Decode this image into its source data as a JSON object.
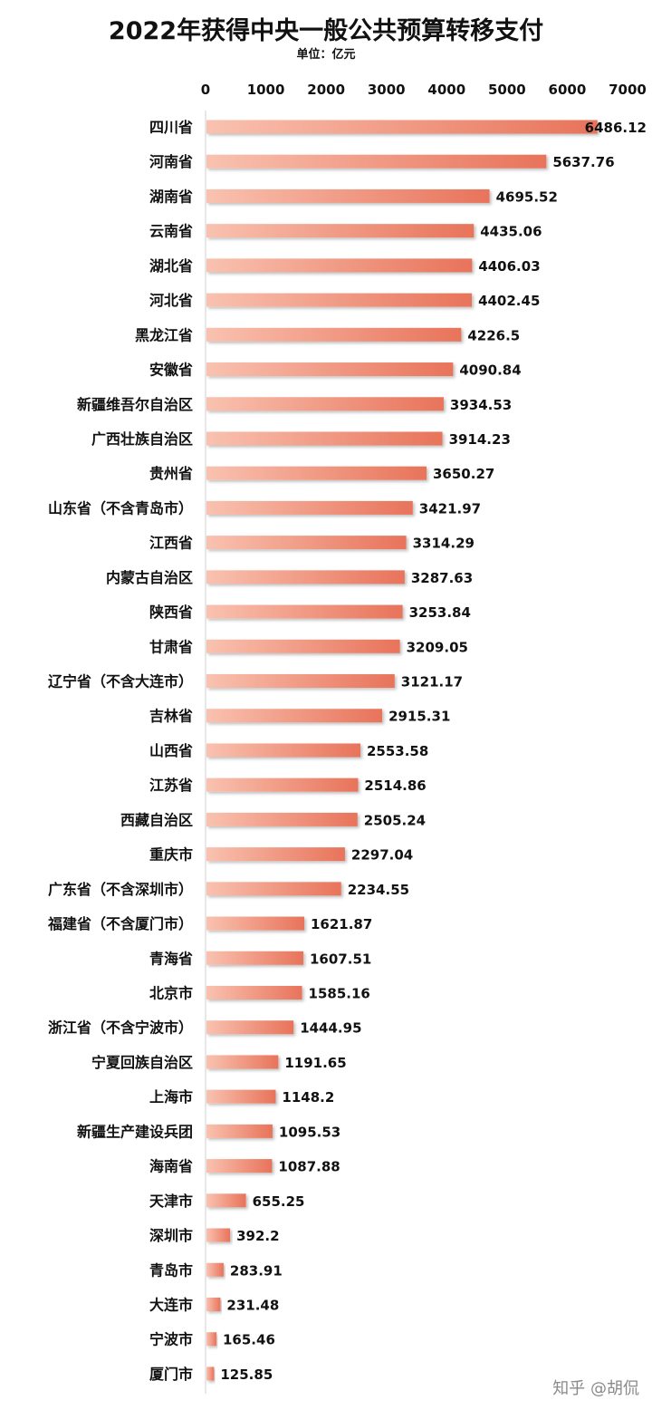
{
  "watermark": "知乎 @胡侃",
  "chart_data": {
    "type": "bar",
    "orientation": "horizontal",
    "title": "2022年获得中央一般公共预算转移支付",
    "subtitle": "单位：亿元",
    "xlim": [
      0,
      7000
    ],
    "ticks": [
      0,
      1000,
      2000,
      3000,
      4000,
      5000,
      6000,
      7000
    ],
    "axis_position": "top",
    "grid": false,
    "bar_color": "#e8735a",
    "bar_color_light": "#f9c2b0",
    "categories": [
      "四川省",
      "河南省",
      "湖南省",
      "云南省",
      "湖北省",
      "河北省",
      "黑龙江省",
      "安徽省",
      "新疆维吾尔自治区",
      "广西壮族自治区",
      "贵州省",
      "山东省（不含青岛市）",
      "江西省",
      "内蒙古自治区",
      "陕西省",
      "甘肃省",
      "辽宁省（不含大连市）",
      "吉林省",
      "山西省",
      "江苏省",
      "西藏自治区",
      "重庆市",
      "广东省（不含深圳市）",
      "福建省（不含厦门市）",
      "青海省",
      "北京市",
      "浙江省（不含宁波市）",
      "宁夏回族自治区",
      "上海市",
      "新疆生产建设兵团",
      "海南省",
      "天津市",
      "深圳市",
      "青岛市",
      "大连市",
      "宁波市",
      "厦门市"
    ],
    "values": [
      6486.12,
      5637.76,
      4695.52,
      4435.06,
      4406.03,
      4402.45,
      4226.5,
      4090.84,
      3934.53,
      3914.23,
      3650.27,
      3421.97,
      3314.29,
      3287.63,
      3253.84,
      3209.05,
      3121.17,
      2915.31,
      2553.58,
      2514.86,
      2505.24,
      2297.04,
      2234.55,
      1621.87,
      1607.51,
      1585.16,
      1444.95,
      1191.65,
      1148.2,
      1095.53,
      1087.88,
      655.25,
      392.2,
      283.91,
      231.48,
      165.46,
      125.85
    ],
    "value_labels": [
      "6486.12",
      "5637.76",
      "4695.52",
      "4435.06",
      "4406.03",
      "4402.45",
      "4226.5",
      "4090.84",
      "3934.53",
      "3914.23",
      "3650.27",
      "3421.97",
      "3314.29",
      "3287.63",
      "3253.84",
      "3209.05",
      "3121.17",
      "2915.31",
      "2553.58",
      "2514.86",
      "2505.24",
      "2297.04",
      "2234.55",
      "1621.87",
      "1607.51",
      "1585.16",
      "1444.95",
      "1191.65",
      "1148.2",
      "1095.53",
      "1087.88",
      "655.25",
      "392.2",
      "283.91",
      "231.48",
      "165.46",
      "125.85"
    ]
  }
}
